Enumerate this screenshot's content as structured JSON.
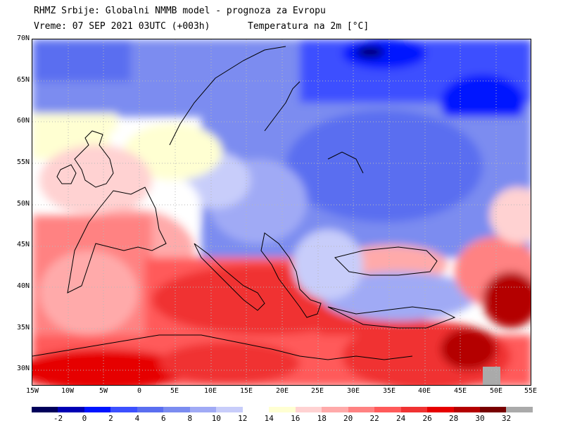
{
  "header": {
    "line1": "RHMZ Srbije: Globalni NMMB model - prognoza za Evropu",
    "line2": "Vreme: 07 SEP 2021 03UTC (+003h)",
    "line3": "Temperatura na 2m [°C]"
  },
  "axes": {
    "lat_labels": [
      "70N",
      "65N",
      "60N",
      "55N",
      "50N",
      "45N",
      "40N",
      "35N",
      "30N"
    ],
    "lon_labels": [
      "15W",
      "10W",
      "5W",
      "0",
      "5E",
      "10E",
      "15E",
      "20E",
      "25E",
      "30E",
      "35E",
      "40E",
      "45E",
      "50E",
      "55E"
    ]
  },
  "colorbar": {
    "labels": [
      "-2",
      "0",
      "2",
      "4",
      "6",
      "8",
      "10",
      "12",
      "14",
      "16",
      "18",
      "20",
      "22",
      "24",
      "26",
      "28",
      "30",
      "32"
    ],
    "colors": [
      "#00005a",
      "#0000b4",
      "#0014ff",
      "#3c50ff",
      "#5a6ef0",
      "#7b8cf0",
      "#a0aaf5",
      "#c8cdfa",
      "#ffffff",
      "#ffffd2",
      "#ffd2d2",
      "#ffaaaa",
      "#ff8282",
      "#ff5a5a",
      "#f03232",
      "#e60000",
      "#b40000",
      "#780000",
      "#aaaaaa"
    ]
  }
}
